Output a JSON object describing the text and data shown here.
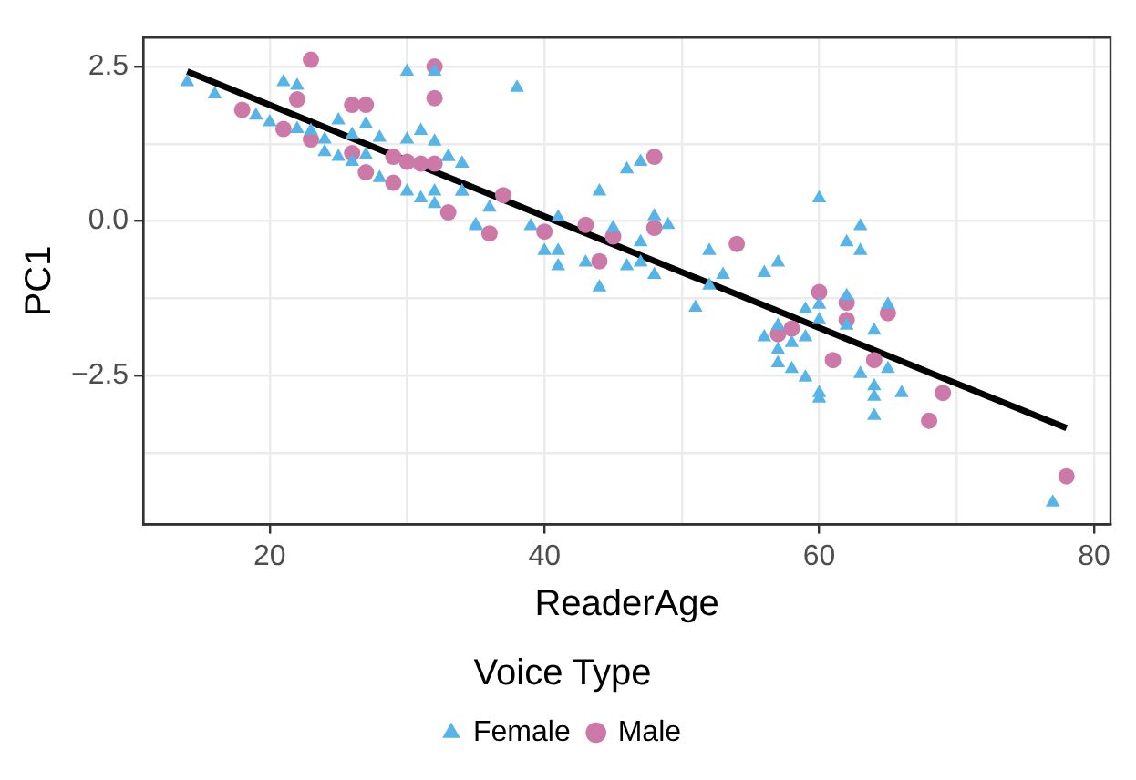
{
  "chart_data": {
    "type": "scatter",
    "xlabel": "ReaderAge",
    "ylabel": "PC1",
    "legend_title": "Voice Type",
    "legend": "bottom",
    "grid": true,
    "xlim": [
      10.8,
      81.2
    ],
    "ylim": [
      -4.91,
      2.97
    ],
    "xticks": [
      20,
      {
        "value": 30,
        "label": null
      },
      40,
      {
        "value": 50,
        "label": null
      },
      60,
      {
        "value": 70,
        "label": null
      },
      80
    ],
    "yticks": [
      {
        "value": -3.75,
        "label": null
      },
      {
        "value": -2.5,
        "label": "−2.5"
      },
      {
        "value": -1.25,
        "label": null
      },
      {
        "value": 0,
        "label": "0.0"
      },
      {
        "value": 1.25,
        "label": null
      },
      {
        "value": 2.5,
        "label": "2.5"
      }
    ],
    "series": [
      {
        "name": "Female",
        "color": "#56b4e9",
        "marker": "triangle",
        "x": [
          14,
          16,
          19,
          20,
          21,
          22,
          30,
          32,
          25,
          27,
          28,
          30,
          31,
          32,
          33,
          34,
          24,
          24,
          25,
          26,
          28,
          30,
          31,
          32,
          32,
          34,
          35,
          22,
          23,
          26,
          27,
          38,
          33,
          34,
          34,
          36,
          35,
          39,
          40,
          41,
          41,
          41,
          43,
          44,
          44,
          45,
          46,
          47,
          46,
          47,
          47,
          48,
          49,
          48,
          52,
          53,
          52,
          51,
          56,
          57,
          56,
          60,
          63,
          62,
          63,
          59,
          60,
          62,
          62,
          65,
          57,
          57,
          57,
          58,
          58,
          59,
          59,
          60,
          60,
          60,
          63,
          64,
          64,
          64,
          64,
          65,
          66,
          77
        ],
        "values": [
          2.25,
          2.05,
          1.71,
          1.6,
          2.25,
          2.19,
          2.42,
          2.42,
          1.63,
          1.57,
          1.35,
          1.32,
          1.46,
          1.29,
          1.04,
          0.93,
          1.32,
          1.12,
          1.04,
          0.96,
          0.7,
          0.48,
          0.37,
          0.48,
          0.28,
          0.48,
          -0.08,
          1.49,
          1.46,
          1.4,
          1.07,
          2.16,
          1.04,
          0.93,
          0.48,
          0.22,
          -0.06,
          -0.08,
          -0.48,
          -0.48,
          -0.73,
          0.06,
          -0.67,
          -1.07,
          0.48,
          -0.11,
          0.84,
          0.96,
          -0.73,
          -0.34,
          -0.67,
          0.08,
          -0.06,
          -0.87,
          -0.48,
          -0.87,
          -1.04,
          -1.4,
          -0.84,
          -0.67,
          -1.88,
          0.37,
          -0.08,
          -0.34,
          -0.48,
          -1.43,
          -1.35,
          -1.21,
          -1.69,
          -1.35,
          -1.69,
          -2.08,
          -2.3,
          -1.97,
          -2.39,
          -1.88,
          -2.53,
          -1.6,
          -2.78,
          -2.87,
          -2.47,
          -1.77,
          -2.67,
          -2.84,
          -3.15,
          -2.39,
          -2.78,
          -4.55
        ]
      },
      {
        "name": "Male",
        "color": "#cc79a7",
        "marker": "circle",
        "x": [
          23,
          18,
          22,
          21,
          23,
          26,
          27,
          32,
          32,
          26,
          27,
          29,
          29,
          30,
          31,
          32,
          33,
          37,
          36,
          40,
          43,
          45,
          44,
          48,
          48,
          54,
          57,
          58,
          60,
          62,
          62,
          65,
          61,
          64,
          69,
          68,
          78
        ],
        "values": [
          2.61,
          1.8,
          1.97,
          1.49,
          1.32,
          1.88,
          1.88,
          2.5,
          1.99,
          1.1,
          0.79,
          0.62,
          1.04,
          0.96,
          0.93,
          0.93,
          0.14,
          0.42,
          -0.2,
          -0.17,
          -0.06,
          -0.25,
          -0.65,
          1.04,
          -0.11,
          -0.37,
          -1.83,
          -1.74,
          -1.15,
          -1.32,
          -1.6,
          -1.49,
          -2.25,
          -2.25,
          -2.78,
          -3.23,
          -4.13
        ]
      },
      {
        "type": "line",
        "color": "#000000",
        "marker": "none",
        "x": [
          14,
          78
        ],
        "values": [
          2.42,
          -3.35
        ]
      }
    ]
  }
}
